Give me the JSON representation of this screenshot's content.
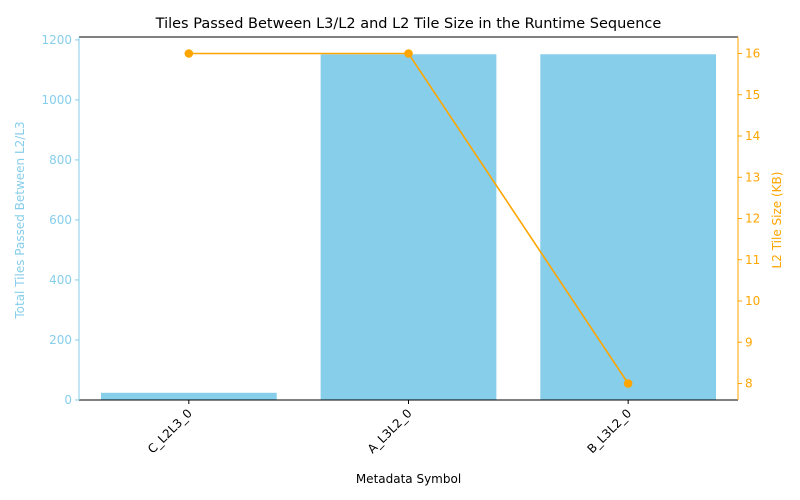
{
  "chart_data": {
    "type": "bar",
    "title": "Tiles Passed Between L3/L2 and L2 Tile Size in the Runtime Sequence",
    "xlabel": "Metadata Symbol",
    "categories": [
      "C_L2L3_0",
      "A_L3L2_0",
      "B_L3L2_0"
    ],
    "bar_series": {
      "ylabel": "Total Tiles Passed Between L2/L3",
      "values": [
        24,
        1152,
        1152
      ],
      "color": "#87ceeb"
    },
    "line_series": {
      "ylabel": "L2 Tile Size (KB)",
      "values": [
        16,
        16,
        8
      ],
      "color": "#ffa500"
    },
    "y_left": {
      "ticks": [
        0,
        200,
        400,
        600,
        800,
        1000,
        1200
      ],
      "lim": [
        0,
        1209.6
      ]
    },
    "y_right": {
      "ticks": [
        8,
        9,
        10,
        11,
        12,
        13,
        14,
        15,
        16
      ],
      "lim": [
        7.6,
        16.4
      ]
    },
    "grid": false,
    "legend": "none",
    "text_color": "#000000"
  }
}
